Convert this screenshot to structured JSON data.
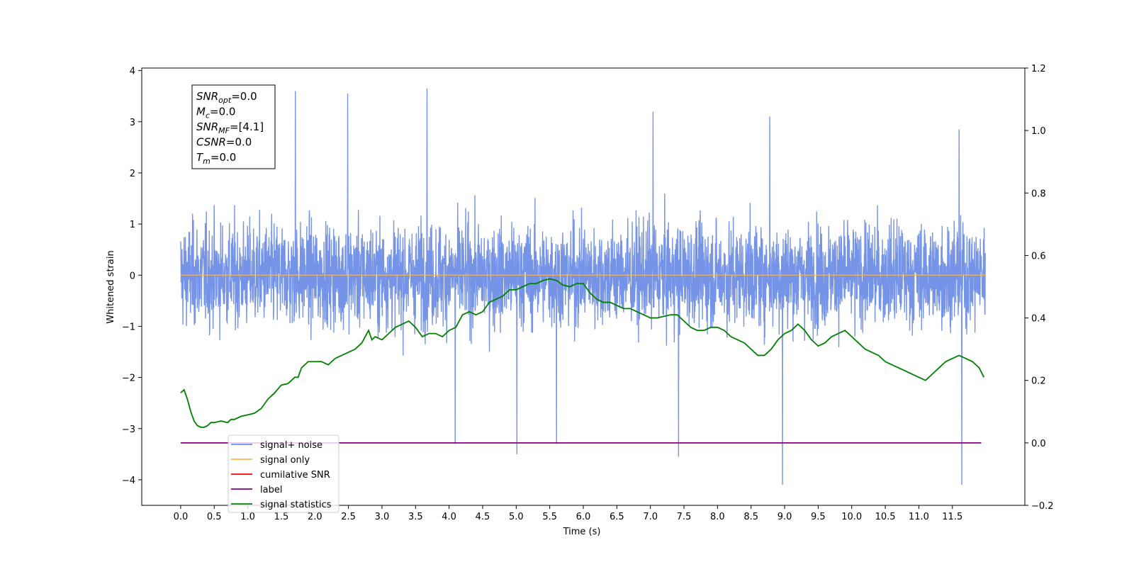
{
  "chart_data": {
    "type": "line",
    "xlabel": "Time (s)",
    "ylabel": "Whitened strain",
    "ylabel_right": "",
    "xlim": [
      -0.58,
      12.58
    ],
    "ylim": [
      -4.5,
      4.05
    ],
    "ylim_right": [
      -0.2,
      1.2
    ],
    "x_ticks": [
      "0.0",
      "0.5",
      "1.0",
      "1.5",
      "2.0",
      "2.5",
      "3.0",
      "3.5",
      "4.0",
      "4.5",
      "5.0",
      "5.5",
      "6.0",
      "6.5",
      "7.0",
      "7.5",
      "8.0",
      "8.5",
      "9.0",
      "9.5",
      "10.0",
      "10.5",
      "11.0",
      "11.5"
    ],
    "y_ticks": [
      "4",
      "3",
      "2",
      "1",
      "0",
      "−1",
      "−2",
      "−3",
      "−4"
    ],
    "y_ticks_right": [
      "1.2",
      "1.0",
      "0.8",
      "0.6",
      "0.4",
      "0.2",
      "0.0",
      "−0.2"
    ],
    "grid": false,
    "legend": {
      "position": "lower-left",
      "entries": [
        {
          "label": "signal+ noise",
          "color": "#6f8ee6"
        },
        {
          "label": "signal only",
          "color": "#ffb347"
        },
        {
          "label": "cumilative SNR",
          "color": "#ff0000"
        },
        {
          "label": "label",
          "color": "#800080"
        },
        {
          "label": "signal statistics",
          "color": "#008000"
        }
      ],
      "hidden_behind_legend": [
        "label only"
      ]
    },
    "annotation": [
      {
        "base": "SNR",
        "sub": "opt",
        "value": "=0.0"
      },
      {
        "base": "M",
        "sub": "c",
        "value": "=0.0"
      },
      {
        "base": "SNR",
        "sub": "MF",
        "value": "=[4.1]"
      },
      {
        "base": "CSNR",
        "sub": "",
        "value": "=0.0"
      },
      {
        "base": "T",
        "sub": "m",
        "value": "=0.0"
      }
    ],
    "series": [
      {
        "name": "signal+ noise",
        "axis": "left",
        "color": "#6f8ee6",
        "description": "whitened noise, approx Gaussian with sigma about 0.8",
        "x_range": [
          0.0,
          11.99
        ],
        "noise_sigma": 0.8,
        "notable_peaks": [
          {
            "x": 1.71,
            "y": 3.6
          },
          {
            "x": 2.49,
            "y": 3.55
          },
          {
            "x": 3.67,
            "y": 3.65
          },
          {
            "x": 7.04,
            "y": 3.2
          },
          {
            "x": 8.78,
            "y": 3.1
          },
          {
            "x": 11.6,
            "y": 2.85
          }
        ],
        "notable_troughs": [
          {
            "x": 8.97,
            "y": -4.1
          },
          {
            "x": 11.64,
            "y": -4.1
          },
          {
            "x": 5.01,
            "y": -3.5
          },
          {
            "x": 7.42,
            "y": -3.55
          },
          {
            "x": 4.09,
            "y": -3.3
          },
          {
            "x": 5.6,
            "y": -3.3
          }
        ]
      },
      {
        "name": "signal only",
        "axis": "left",
        "color": "#ffb347",
        "x": [
          0.0,
          12.0
        ],
        "y": [
          0.0,
          0.0
        ]
      },
      {
        "name": "label",
        "axis": "right",
        "color": "#800080",
        "x": [
          0.0,
          11.93
        ],
        "y": [
          0.0,
          0.0
        ]
      },
      {
        "name": "signal statistics",
        "axis": "right",
        "color": "#008000",
        "x": [
          0.0,
          0.05,
          0.1,
          0.15,
          0.2,
          0.25,
          0.3,
          0.35,
          0.4,
          0.45,
          0.5,
          0.6,
          0.7,
          0.75,
          0.8,
          0.9,
          1.0,
          1.1,
          1.2,
          1.3,
          1.4,
          1.5,
          1.6,
          1.7,
          1.75,
          1.8,
          1.9,
          2.0,
          2.1,
          2.2,
          2.3,
          2.4,
          2.5,
          2.6,
          2.7,
          2.8,
          2.85,
          2.9,
          3.0,
          3.1,
          3.2,
          3.3,
          3.4,
          3.5,
          3.6,
          3.7,
          3.8,
          3.9,
          4.0,
          4.1,
          4.2,
          4.3,
          4.4,
          4.5,
          4.6,
          4.7,
          4.8,
          4.9,
          5.0,
          5.1,
          5.2,
          5.3,
          5.4,
          5.5,
          5.6,
          5.7,
          5.8,
          5.9,
          6.0,
          6.1,
          6.2,
          6.3,
          6.4,
          6.5,
          6.6,
          6.7,
          6.8,
          6.9,
          7.0,
          7.1,
          7.2,
          7.3,
          7.4,
          7.5,
          7.6,
          7.7,
          7.8,
          7.9,
          8.0,
          8.1,
          8.2,
          8.3,
          8.4,
          8.5,
          8.6,
          8.7,
          8.8,
          8.9,
          9.0,
          9.1,
          9.2,
          9.3,
          9.4,
          9.5,
          9.6,
          9.7,
          9.8,
          9.9,
          10.0,
          10.1,
          10.2,
          10.3,
          10.4,
          10.5,
          10.6,
          10.7,
          10.8,
          10.9,
          11.0,
          11.1,
          11.2,
          11.3,
          11.4,
          11.5,
          11.6,
          11.7,
          11.8,
          11.9,
          11.97
        ],
        "y": [
          0.16,
          0.17,
          0.14,
          0.1,
          0.07,
          0.055,
          0.05,
          0.05,
          0.055,
          0.065,
          0.065,
          0.07,
          0.065,
          0.075,
          0.075,
          0.085,
          0.09,
          0.095,
          0.11,
          0.14,
          0.16,
          0.185,
          0.19,
          0.21,
          0.21,
          0.24,
          0.26,
          0.26,
          0.26,
          0.25,
          0.27,
          0.28,
          0.29,
          0.3,
          0.32,
          0.36,
          0.33,
          0.34,
          0.33,
          0.35,
          0.37,
          0.38,
          0.39,
          0.37,
          0.34,
          0.35,
          0.35,
          0.34,
          0.36,
          0.37,
          0.41,
          0.42,
          0.41,
          0.42,
          0.45,
          0.46,
          0.47,
          0.49,
          0.49,
          0.5,
          0.51,
          0.51,
          0.52,
          0.525,
          0.52,
          0.505,
          0.5,
          0.51,
          0.51,
          0.48,
          0.46,
          0.45,
          0.45,
          0.44,
          0.43,
          0.43,
          0.42,
          0.41,
          0.4,
          0.4,
          0.405,
          0.41,
          0.41,
          0.39,
          0.37,
          0.36,
          0.36,
          0.37,
          0.37,
          0.36,
          0.34,
          0.33,
          0.32,
          0.3,
          0.28,
          0.28,
          0.3,
          0.33,
          0.35,
          0.36,
          0.38,
          0.36,
          0.33,
          0.31,
          0.32,
          0.34,
          0.35,
          0.36,
          0.34,
          0.32,
          0.3,
          0.29,
          0.28,
          0.26,
          0.25,
          0.24,
          0.23,
          0.22,
          0.21,
          0.2,
          0.22,
          0.24,
          0.26,
          0.27,
          0.28,
          0.27,
          0.26,
          0.24,
          0.21
        ]
      }
    ]
  }
}
